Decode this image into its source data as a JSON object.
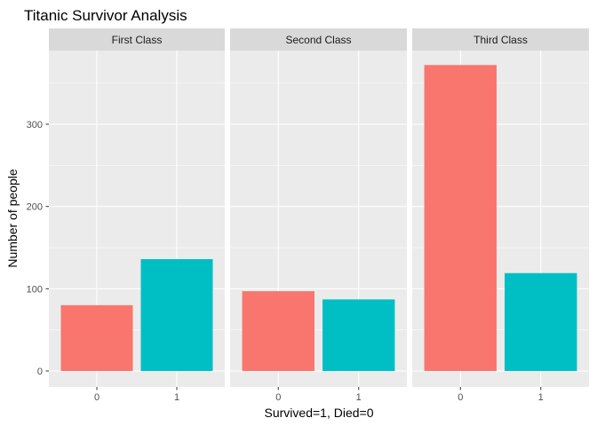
{
  "chart_data": {
    "type": "bar",
    "title": "Titanic Survivor Analysis",
    "xlabel": "Survived=1, Died=0",
    "ylabel": "Number of people",
    "ylim": [
      -20,
      385
    ],
    "yticks": [
      0,
      100,
      200,
      300
    ],
    "categories": [
      "0",
      "1"
    ],
    "fill_colors": [
      "#F8766D",
      "#00BFC4"
    ],
    "panel_background": "#EBEBEB",
    "strip_background": "#D9D9D9",
    "grid": true,
    "facets": [
      {
        "label": "First Class",
        "values": [
          80,
          136
        ]
      },
      {
        "label": "Second Class",
        "values": [
          97,
          87
        ]
      },
      {
        "label": "Third Class",
        "values": [
          372,
          119
        ]
      }
    ]
  }
}
